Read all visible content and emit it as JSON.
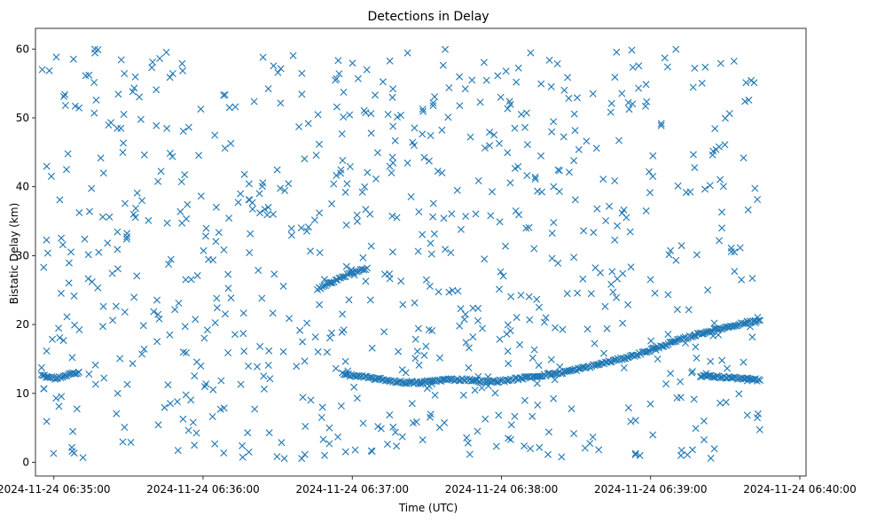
{
  "chart_data": {
    "type": "scatter",
    "title": "Detections in Delay",
    "xlabel": "Time (UTC)",
    "ylabel": "Bistatic Delay (km)",
    "marker": "x",
    "color": "#1f77b4",
    "grid": false,
    "legend": "none",
    "x_unit": "seconds after 2024-11-24 06:34:00 UTC",
    "xlim": [
      52.6,
      362.5
    ],
    "ylim": [
      -2.0,
      63.0
    ],
    "x_ticks": [
      {
        "value": 60,
        "label": "2024-11-24 06:35:00"
      },
      {
        "value": 120,
        "label": "2024-11-24 06:36:00"
      },
      {
        "value": 180,
        "label": "2024-11-24 06:37:00"
      },
      {
        "value": 240,
        "label": "2024-11-24 06:38:00"
      },
      {
        "value": 300,
        "label": "2024-11-24 06:39:00"
      },
      {
        "value": 360,
        "label": "2024-11-24 06:40:00"
      }
    ],
    "y_ticks": [
      {
        "value": 0,
        "label": "0"
      },
      {
        "value": 10,
        "label": "10"
      },
      {
        "value": 20,
        "label": "20"
      },
      {
        "value": 30,
        "label": "30"
      },
      {
        "value": 40,
        "label": "40"
      },
      {
        "value": 50,
        "label": "50"
      },
      {
        "value": 60,
        "label": "60"
      }
    ],
    "tracks": [
      {
        "points": [
          [
            55,
            12.6
          ],
          [
            58,
            12.3
          ],
          [
            61,
            12.2
          ],
          [
            64,
            12.4
          ],
          [
            67,
            12.8
          ],
          [
            70,
            13.1
          ]
        ]
      },
      {
        "points": [
          [
            166,
            25.2
          ],
          [
            170,
            25.8
          ],
          [
            174,
            26.5
          ],
          [
            178,
            27.2
          ],
          [
            182,
            27.8
          ],
          [
            186,
            28.2
          ]
        ]
      },
      {
        "points": [
          [
            176,
            12.8
          ],
          [
            184,
            12.4
          ],
          [
            192,
            12.0
          ],
          [
            200,
            11.6
          ],
          [
            206,
            11.5
          ],
          [
            212,
            11.8
          ],
          [
            218,
            12.0
          ],
          [
            226,
            12.0
          ],
          [
            234,
            11.7
          ],
          [
            240,
            11.8
          ],
          [
            248,
            12.2
          ],
          [
            256,
            12.6
          ],
          [
            264,
            13.0
          ],
          [
            272,
            13.6
          ],
          [
            280,
            14.3
          ],
          [
            288,
            15.0
          ],
          [
            296,
            15.8
          ],
          [
            304,
            16.8
          ],
          [
            312,
            17.8
          ],
          [
            320,
            18.7
          ],
          [
            328,
            19.4
          ],
          [
            334,
            19.9
          ],
          [
            340,
            20.4
          ],
          [
            344,
            20.6
          ]
        ]
      },
      {
        "points": [
          [
            320,
            12.6
          ],
          [
            326,
            12.4
          ],
          [
            332,
            12.3
          ],
          [
            338,
            12.1
          ],
          [
            344,
            11.9
          ]
        ]
      }
    ],
    "clutter": {
      "count": 800,
      "x_range": [
        55,
        344
      ],
      "y_range": [
        0.5,
        60
      ]
    }
  }
}
